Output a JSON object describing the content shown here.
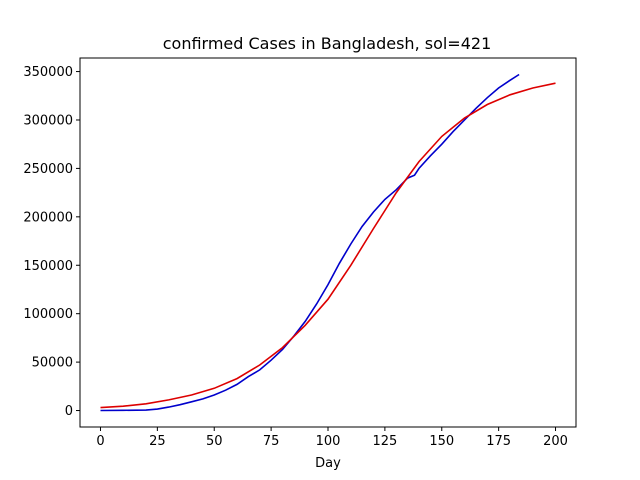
{
  "chart_data": {
    "type": "line",
    "title": "confirmed Cases in Bangladesh, sol=421",
    "xlabel": "Day",
    "ylabel": "",
    "xlim": [
      -9,
      209
    ],
    "ylim": [
      -17000,
      364000
    ],
    "xticks": [
      0,
      25,
      50,
      75,
      100,
      125,
      150,
      175,
      200
    ],
    "yticks": [
      0,
      50000,
      100000,
      150000,
      200000,
      250000,
      300000,
      350000
    ],
    "grid": false,
    "series": [
      {
        "color": "#0000cc",
        "x": [
          0,
          10,
          20,
          25,
          30,
          35,
          40,
          45,
          50,
          55,
          60,
          65,
          70,
          75,
          80,
          85,
          90,
          95,
          100,
          105,
          110,
          115,
          120,
          125,
          130,
          135,
          138,
          140,
          145,
          150,
          155,
          160,
          165,
          170,
          175,
          180,
          184
        ],
        "y": [
          0,
          200,
          500,
          1500,
          3500,
          6000,
          9000,
          12000,
          16000,
          21000,
          27000,
          35000,
          42000,
          52000,
          63000,
          77000,
          92000,
          110000,
          130000,
          152000,
          172000,
          190000,
          205000,
          218000,
          228000,
          240000,
          243000,
          250000,
          263000,
          275000,
          288000,
          300000,
          312000,
          323000,
          333000,
          341000,
          347000
        ]
      },
      {
        "color": "#dd0000",
        "x": [
          0,
          10,
          20,
          30,
          40,
          50,
          60,
          70,
          80,
          90,
          100,
          110,
          120,
          130,
          140,
          150,
          160,
          170,
          180,
          190,
          200
        ],
        "y": [
          3000,
          4500,
          7000,
          11000,
          16000,
          23000,
          33000,
          47000,
          65000,
          88000,
          115000,
          150000,
          188000,
          225000,
          257000,
          283000,
          302000,
          316000,
          326000,
          333000,
          338000
        ]
      }
    ]
  }
}
